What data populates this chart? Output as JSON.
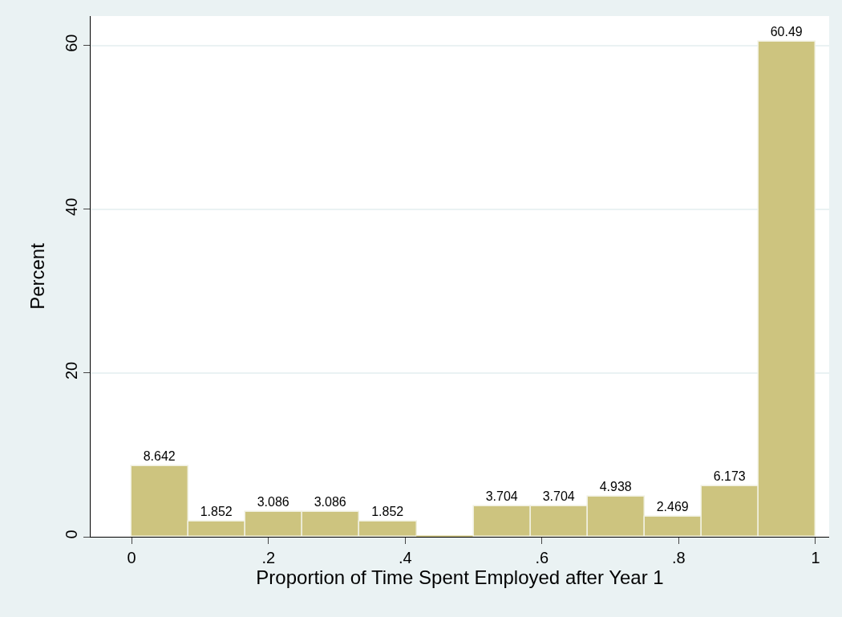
{
  "chart_data": {
    "type": "histogram",
    "xlabel": "Proportion of Time Spent Employed after Year 1",
    "ylabel": "Percent",
    "bins": [
      0,
      0.0833,
      0.1667,
      0.25,
      0.3333,
      0.4167,
      0.5,
      0.5833,
      0.6667,
      0.75,
      0.8333,
      0.9167,
      1
    ],
    "values": [
      8.642,
      1.852,
      3.086,
      3.086,
      1.852,
      0,
      3.704,
      3.704,
      4.938,
      2.469,
      6.173,
      60.49
    ],
    "value_labels": [
      "8.642",
      "1.852",
      "3.086",
      "3.086",
      "1.852",
      null,
      "3.704",
      "3.704",
      "4.938",
      "2.469",
      "6.173",
      "60.49"
    ],
    "color": "#cdc47f",
    "xlim": [
      -0.06,
      1.02
    ],
    "xticks": [
      0,
      {
        "value": 0.2,
        "label": ".2"
      },
      {
        "value": 0.4,
        "label": ".4"
      },
      {
        "value": 0.6,
        "label": ".6"
      },
      {
        "value": 0.8,
        "label": ".8"
      },
      1
    ],
    "ylim": [
      0,
      63.6
    ],
    "yticks": [
      0,
      20,
      40,
      60
    ],
    "grid": "y"
  }
}
